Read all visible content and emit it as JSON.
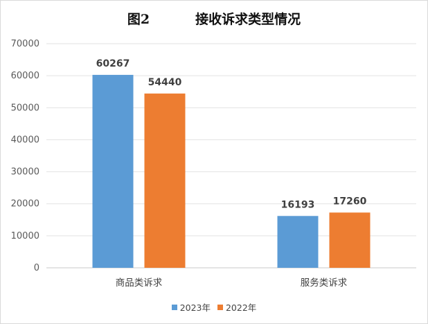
{
  "chart_data": {
    "type": "bar",
    "title": "图2          接收诉求类型情况",
    "categories": [
      "商品类诉求",
      "服务类诉求"
    ],
    "series": [
      {
        "name": "2023年",
        "values": [
          60267,
          16193
        ],
        "color": "#5b9bd5"
      },
      {
        "name": "2022年",
        "values": [
          54440,
          17260
        ],
        "color": "#ed7d31"
      }
    ],
    "ylim": [
      0,
      70000
    ],
    "yticks": [
      0,
      10000,
      20000,
      30000,
      40000,
      50000,
      60000,
      70000
    ],
    "grid": true,
    "legend": "bottom-center"
  }
}
